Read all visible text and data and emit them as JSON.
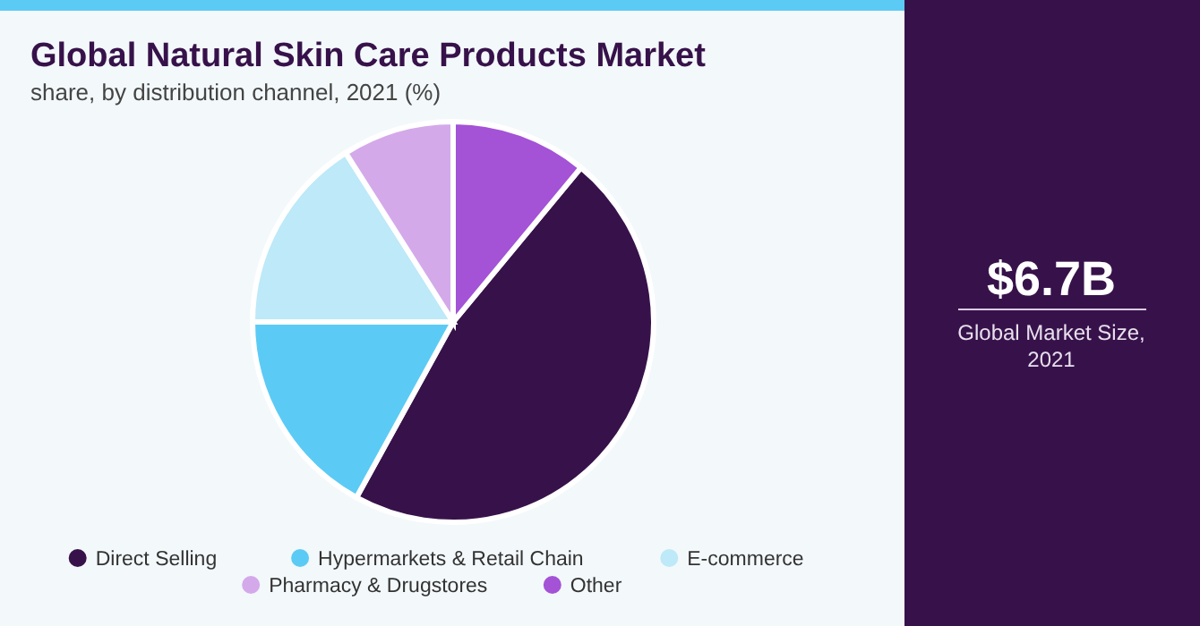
{
  "chart_data": {
    "type": "pie",
    "title": "Global Natural Skin Care Products Market",
    "subtitle": "share, by distribution channel, 2021 (%)",
    "categories": [
      "Direct Selling",
      "Hypermarkets & Retail Chain",
      "E-commerce",
      "Pharmacy & Drugstores",
      "Other"
    ],
    "values": [
      47,
      17,
      16,
      9,
      11
    ],
    "colors": [
      "#37124a",
      "#5bcbf5",
      "#bde9f8",
      "#d4a9ea",
      "#a452d6"
    ],
    "legend": "bottom",
    "annotations": [
      "$6.7B",
      "Global Market Size, 2021"
    ]
  }
}
